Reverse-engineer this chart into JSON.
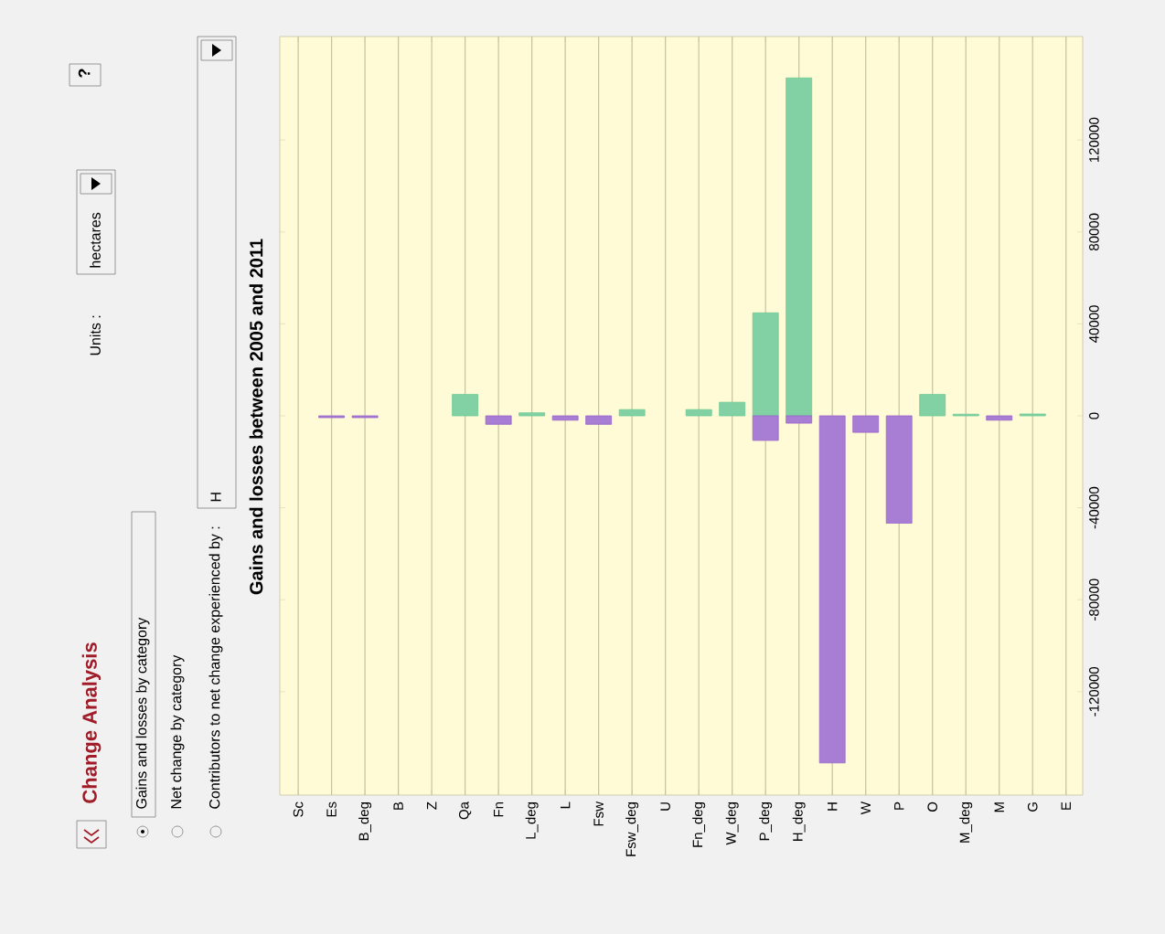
{
  "chart_data": {
    "type": "bar",
    "title": "Gains and losses between 2005 and 2011",
    "annotations": [
      "Change Analysis",
      "Gains and losses by category",
      "Net change by category",
      "Contributors to net change experienced by :",
      "H",
      "Units :",
      "hectares",
      "?"
    ],
    "categories": [
      "Sc",
      "Es",
      "B_deg",
      "B",
      "Z",
      "Qa",
      "Fn",
      "L_deg",
      "L",
      "Fsw",
      "Fsw_deg",
      "U",
      "Fn_deg",
      "W_deg",
      "P_deg",
      "H_deg",
      "H",
      "W",
      "P",
      "O",
      "M_deg",
      "M",
      "G",
      "E"
    ],
    "series": [
      {
        "color": "#6cc995",
        "values": [
          null,
          null,
          null,
          null,
          null,
          9300,
          null,
          1300,
          null,
          null,
          2700,
          null,
          2700,
          5900,
          44800,
          147000,
          null,
          null,
          null,
          9300,
          700,
          null,
          800,
          null
        ]
      },
      {
        "color": "#9966cc",
        "values": [
          null,
          -800,
          -800,
          null,
          null,
          null,
          -3700,
          null,
          -1900,
          -3700,
          null,
          null,
          null,
          null,
          -10700,
          -3200,
          -151000,
          -7200,
          -46700,
          null,
          null,
          -1900,
          null,
          null
        ]
      }
    ],
    "ylim": [
      -165000,
      165000
    ],
    "yticks": [
      -120000,
      -80000,
      -40000,
      0,
      40000,
      80000,
      120000
    ],
    "grid": "x"
  }
}
